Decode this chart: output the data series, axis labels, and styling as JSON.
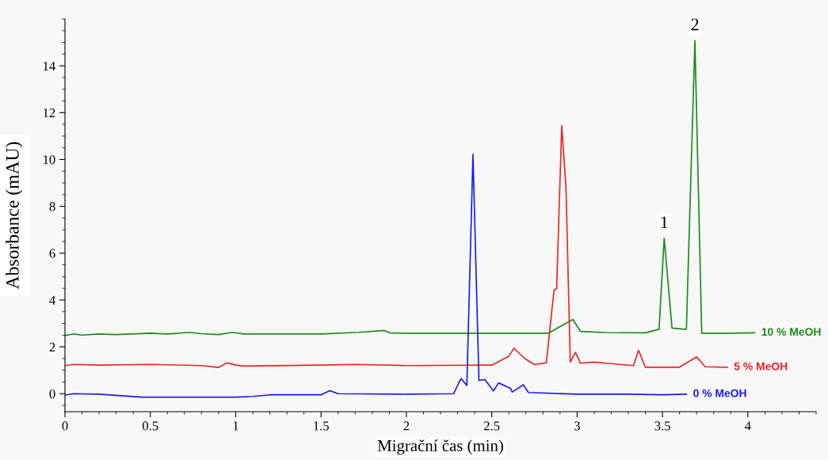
{
  "chart_data": {
    "type": "line",
    "xlabel": "Migrační čas (min)",
    "ylabel": "Absorbance (mAU)",
    "xlim": [
      0,
      4.4
    ],
    "ylim": [
      -0.77,
      16
    ],
    "xticks": [
      0,
      0.5,
      1,
      1.5,
      2,
      2.5,
      3,
      3.5,
      4
    ],
    "yticks": [
      0,
      2,
      4,
      6,
      8,
      10,
      12,
      14
    ],
    "grid": false,
    "legend": false,
    "marker": "none",
    "line_style": "solid",
    "series": [
      {
        "name": "10 % MeOH",
        "color": "#1a8a1a",
        "x": [
          0,
          0.05,
          0.1,
          0.2,
          0.3,
          0.5,
          0.6,
          0.73,
          0.8,
          0.9,
          0.98,
          1.05,
          1.5,
          1.72,
          1.87,
          1.9,
          2.0,
          2.5,
          2.83,
          2.91,
          2.975,
          3.02,
          3.17,
          3.4,
          3.48,
          3.51,
          3.556,
          3.63,
          3.64,
          3.69,
          3.73,
          3.9,
          4.04
        ],
        "values": [
          2.48,
          2.55,
          2.5,
          2.55,
          2.52,
          2.58,
          2.55,
          2.62,
          2.56,
          2.52,
          2.62,
          2.55,
          2.55,
          2.62,
          2.7,
          2.6,
          2.58,
          2.58,
          2.58,
          2.91,
          3.17,
          2.66,
          2.61,
          2.6,
          2.75,
          6.63,
          2.8,
          2.75,
          2.75,
          15.08,
          2.58,
          2.58,
          2.6
        ]
      },
      {
        "name": "5 % MeOH",
        "color": "#ee2222",
        "x": [
          0,
          0.05,
          0.2,
          0.5,
          0.8,
          0.9,
          0.95,
          1.0,
          1.05,
          1.5,
          1.7,
          2.0,
          2.5,
          2.6,
          2.63,
          2.69,
          2.75,
          2.82,
          2.85,
          2.865,
          2.88,
          2.91,
          2.935,
          2.96,
          2.99,
          3.02,
          3.09,
          3.17,
          3.33,
          3.36,
          3.4,
          3.6,
          3.7,
          3.75,
          3.88
        ],
        "values": [
          1.2,
          1.25,
          1.22,
          1.25,
          1.2,
          1.12,
          1.32,
          1.22,
          1.18,
          1.22,
          1.25,
          1.2,
          1.22,
          1.6,
          1.94,
          1.52,
          1.24,
          1.32,
          3.42,
          4.42,
          4.49,
          11.45,
          8.77,
          1.35,
          1.76,
          1.3,
          1.35,
          1.3,
          1.2,
          1.85,
          1.13,
          1.13,
          1.57,
          1.15,
          1.13
        ]
      },
      {
        "name": "0 % MeOH",
        "color": "#1a1aee",
        "x": [
          0,
          0.05,
          0.2,
          0.45,
          0.8,
          1.0,
          1.1,
          1.2,
          1.5,
          1.55,
          1.6,
          2.0,
          2.277,
          2.32,
          2.354,
          2.39,
          2.425,
          2.46,
          2.51,
          2.54,
          2.61,
          2.62,
          2.685,
          2.715,
          3.0,
          3.3,
          3.5,
          3.64
        ],
        "values": [
          -0.06,
          0.0,
          -0.02,
          -0.15,
          -0.15,
          -0.15,
          -0.12,
          -0.05,
          -0.05,
          0.13,
          0.0,
          -0.02,
          0.0,
          0.65,
          0.35,
          10.22,
          0.57,
          0.6,
          0.12,
          0.46,
          0.23,
          0.07,
          0.38,
          0.05,
          -0.02,
          -0.02,
          -0.05,
          -0.02
        ]
      }
    ],
    "annotations": [
      {
        "text": "1",
        "x": 3.51,
        "y": 6.63
      },
      {
        "text": "2",
        "x": 3.69,
        "y": 15.08
      }
    ]
  }
}
